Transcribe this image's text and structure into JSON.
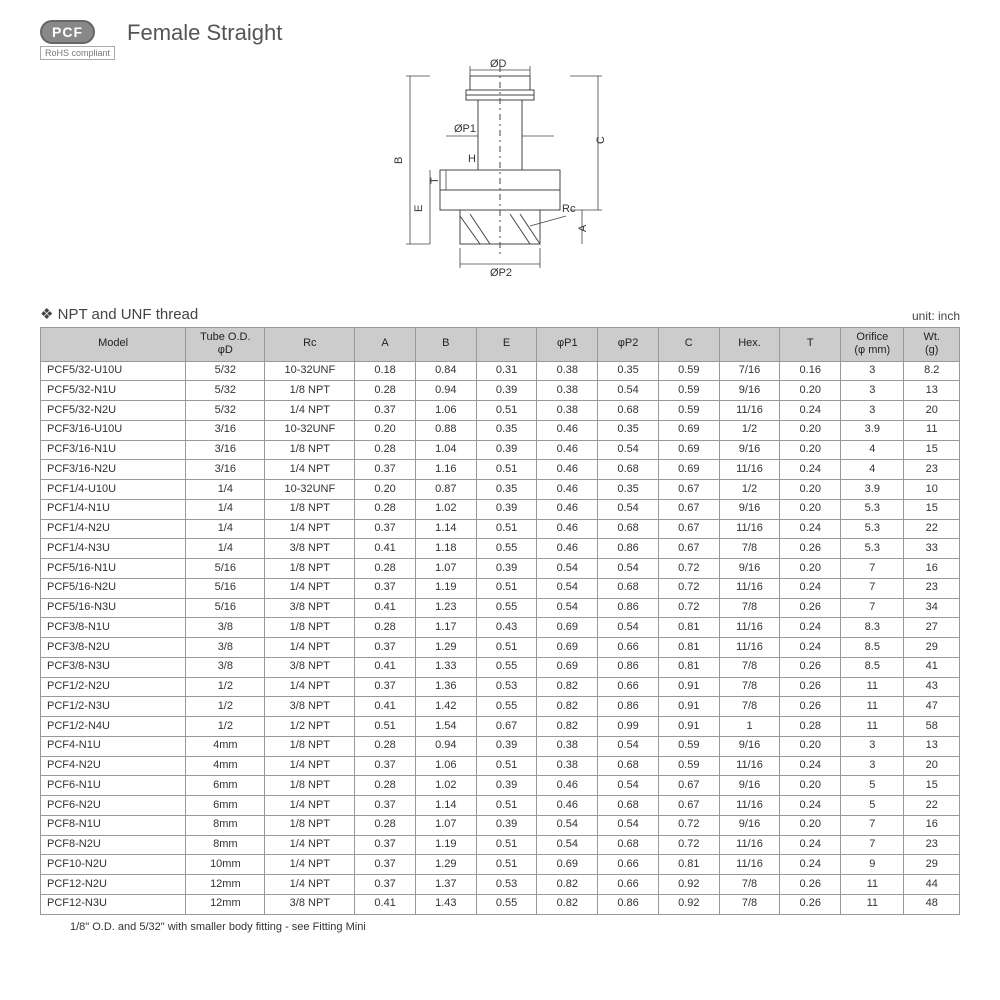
{
  "badge": "PCF",
  "title": "Female  Straight",
  "rohs": "RoHS compliant",
  "diagram_labels": {
    "od": "ØD",
    "p1": "ØP1",
    "p2": "ØP2",
    "b": "B",
    "c": "C",
    "e": "E",
    "a": "A",
    "h": "H",
    "t": "T",
    "rc": "Rc"
  },
  "section_title": "NPT and UNF thread",
  "unit": "unit: inch",
  "columns": [
    "Model",
    "Tube O.D.\nφD",
    "Rc",
    "A",
    "B",
    "E",
    "φP1",
    "φP2",
    "C",
    "Hex.",
    "T",
    "Orifice\n(φ mm)",
    "Wt.\n(g)"
  ],
  "rows": [
    [
      "PCF5/32-U10U",
      "5/32",
      "10-32UNF",
      "0.18",
      "0.84",
      "0.31",
      "0.38",
      "0.35",
      "0.59",
      "7/16",
      "0.16",
      "3",
      "8.2"
    ],
    [
      "PCF5/32-N1U",
      "5/32",
      "1/8 NPT",
      "0.28",
      "0.94",
      "0.39",
      "0.38",
      "0.54",
      "0.59",
      "9/16",
      "0.20",
      "3",
      "13"
    ],
    [
      "PCF5/32-N2U",
      "5/32",
      "1/4 NPT",
      "0.37",
      "1.06",
      "0.51",
      "0.38",
      "0.68",
      "0.59",
      "11/16",
      "0.24",
      "3",
      "20"
    ],
    [
      "PCF3/16-U10U",
      "3/16",
      "10-32UNF",
      "0.20",
      "0.88",
      "0.35",
      "0.46",
      "0.35",
      "0.69",
      "1/2",
      "0.20",
      "3.9",
      "11"
    ],
    [
      "PCF3/16-N1U",
      "3/16",
      "1/8 NPT",
      "0.28",
      "1.04",
      "0.39",
      "0.46",
      "0.54",
      "0.69",
      "9/16",
      "0.20",
      "4",
      "15"
    ],
    [
      "PCF3/16-N2U",
      "3/16",
      "1/4 NPT",
      "0.37",
      "1.16",
      "0.51",
      "0.46",
      "0.68",
      "0.69",
      "11/16",
      "0.24",
      "4",
      "23"
    ],
    [
      "PCF1/4-U10U",
      "1/4",
      "10-32UNF",
      "0.20",
      "0.87",
      "0.35",
      "0.46",
      "0.35",
      "0.67",
      "1/2",
      "0.20",
      "3.9",
      "10"
    ],
    [
      "PCF1/4-N1U",
      "1/4",
      "1/8 NPT",
      "0.28",
      "1.02",
      "0.39",
      "0.46",
      "0.54",
      "0.67",
      "9/16",
      "0.20",
      "5.3",
      "15"
    ],
    [
      "PCF1/4-N2U",
      "1/4",
      "1/4 NPT",
      "0.37",
      "1.14",
      "0.51",
      "0.46",
      "0.68",
      "0.67",
      "11/16",
      "0.24",
      "5.3",
      "22"
    ],
    [
      "PCF1/4-N3U",
      "1/4",
      "3/8 NPT",
      "0.41",
      "1.18",
      "0.55",
      "0.46",
      "0.86",
      "0.67",
      "7/8",
      "0.26",
      "5.3",
      "33"
    ],
    [
      "PCF5/16-N1U",
      "5/16",
      "1/8 NPT",
      "0.28",
      "1.07",
      "0.39",
      "0.54",
      "0.54",
      "0.72",
      "9/16",
      "0.20",
      "7",
      "16"
    ],
    [
      "PCF5/16-N2U",
      "5/16",
      "1/4 NPT",
      "0.37",
      "1.19",
      "0.51",
      "0.54",
      "0.68",
      "0.72",
      "11/16",
      "0.24",
      "7",
      "23"
    ],
    [
      "PCF5/16-N3U",
      "5/16",
      "3/8 NPT",
      "0.41",
      "1.23",
      "0.55",
      "0.54",
      "0.86",
      "0.72",
      "7/8",
      "0.26",
      "7",
      "34"
    ],
    [
      "PCF3/8-N1U",
      "3/8",
      "1/8 NPT",
      "0.28",
      "1.17",
      "0.43",
      "0.69",
      "0.54",
      "0.81",
      "11/16",
      "0.24",
      "8.3",
      "27"
    ],
    [
      "PCF3/8-N2U",
      "3/8",
      "1/4 NPT",
      "0.37",
      "1.29",
      "0.51",
      "0.69",
      "0.66",
      "0.81",
      "11/16",
      "0.24",
      "8.5",
      "29"
    ],
    [
      "PCF3/8-N3U",
      "3/8",
      "3/8 NPT",
      "0.41",
      "1.33",
      "0.55",
      "0.69",
      "0.86",
      "0.81",
      "7/8",
      "0.26",
      "8.5",
      "41"
    ],
    [
      "PCF1/2-N2U",
      "1/2",
      "1/4 NPT",
      "0.37",
      "1.36",
      "0.53",
      "0.82",
      "0.66",
      "0.91",
      "7/8",
      "0.26",
      "11",
      "43"
    ],
    [
      "PCF1/2-N3U",
      "1/2",
      "3/8 NPT",
      "0.41",
      "1.42",
      "0.55",
      "0.82",
      "0.86",
      "0.91",
      "7/8",
      "0.26",
      "11",
      "47"
    ],
    [
      "PCF1/2-N4U",
      "1/2",
      "1/2 NPT",
      "0.51",
      "1.54",
      "0.67",
      "0.82",
      "0.99",
      "0.91",
      "1",
      "0.28",
      "11",
      "58"
    ],
    [
      "PCF4-N1U",
      "4mm",
      "1/8 NPT",
      "0.28",
      "0.94",
      "0.39",
      "0.38",
      "0.54",
      "0.59",
      "9/16",
      "0.20",
      "3",
      "13"
    ],
    [
      "PCF4-N2U",
      "4mm",
      "1/4 NPT",
      "0.37",
      "1.06",
      "0.51",
      "0.38",
      "0.68",
      "0.59",
      "11/16",
      "0.24",
      "3",
      "20"
    ],
    [
      "PCF6-N1U",
      "6mm",
      "1/8 NPT",
      "0.28",
      "1.02",
      "0.39",
      "0.46",
      "0.54",
      "0.67",
      "9/16",
      "0.20",
      "5",
      "15"
    ],
    [
      "PCF6-N2U",
      "6mm",
      "1/4 NPT",
      "0.37",
      "1.14",
      "0.51",
      "0.46",
      "0.68",
      "0.67",
      "11/16",
      "0.24",
      "5",
      "22"
    ],
    [
      "PCF8-N1U",
      "8mm",
      "1/8 NPT",
      "0.28",
      "1.07",
      "0.39",
      "0.54",
      "0.54",
      "0.72",
      "9/16",
      "0.20",
      "7",
      "16"
    ],
    [
      "PCF8-N2U",
      "8mm",
      "1/4 NPT",
      "0.37",
      "1.19",
      "0.51",
      "0.54",
      "0.68",
      "0.72",
      "11/16",
      "0.24",
      "7",
      "23"
    ],
    [
      "PCF10-N2U",
      "10mm",
      "1/4 NPT",
      "0.37",
      "1.29",
      "0.51",
      "0.69",
      "0.66",
      "0.81",
      "11/16",
      "0.24",
      "9",
      "29"
    ],
    [
      "PCF12-N2U",
      "12mm",
      "1/4 NPT",
      "0.37",
      "1.37",
      "0.53",
      "0.82",
      "0.66",
      "0.92",
      "7/8",
      "0.26",
      "11",
      "44"
    ],
    [
      "PCF12-N3U",
      "12mm",
      "3/8 NPT",
      "0.41",
      "1.43",
      "0.55",
      "0.82",
      "0.86",
      "0.92",
      "7/8",
      "0.26",
      "11",
      "48"
    ]
  ],
  "footnote": "1/8\" O.D. and 5/32\" with smaller body fitting -  see Fitting Mini"
}
